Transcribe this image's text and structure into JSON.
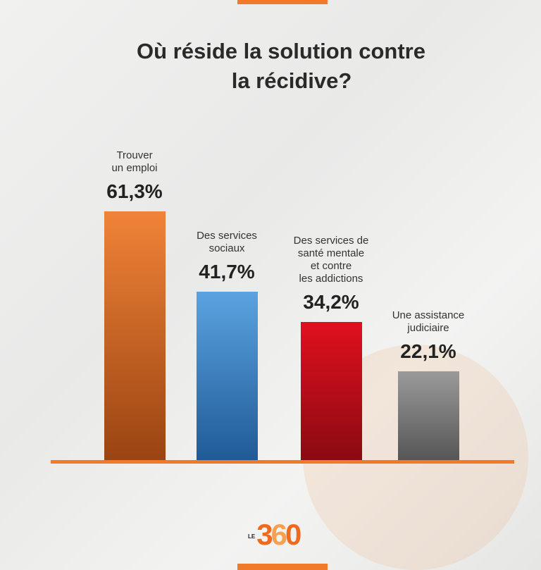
{
  "chart_data": {
    "type": "bar",
    "title": "Où réside la solution contre la récidive?",
    "title_lines": [
      "Où réside la solution contre",
      "la récidive?"
    ],
    "categories": [
      "Trouver un emploi",
      "Des services sociaux",
      "Des services de santé mentale et contre les addictions",
      "Une assistance judiciaire"
    ],
    "category_lines": [
      [
        "Trouver",
        "un emploi"
      ],
      [
        "Des services",
        "sociaux"
      ],
      [
        "Des services de",
        "santé mentale",
        "et contre",
        "les addictions"
      ],
      [
        "Une assistance",
        "judiciaire"
      ]
    ],
    "values": [
      61.3,
      41.7,
      34.2,
      22.1
    ],
    "value_labels": [
      "61,3%",
      "41,7%",
      "34,2%",
      "22,1%"
    ],
    "colors": [
      [
        "#f08338",
        "#9a4412"
      ],
      [
        "#5aa3e0",
        "#1f5a96"
      ],
      [
        "#e0101e",
        "#8a0a12"
      ],
      [
        "#9a9a9a",
        "#555555"
      ]
    ],
    "ylim": [
      0,
      61.3
    ],
    "xlabel": "",
    "ylabel": "",
    "grid": false
  },
  "logo": {
    "prefix": "LE",
    "text": "360"
  }
}
